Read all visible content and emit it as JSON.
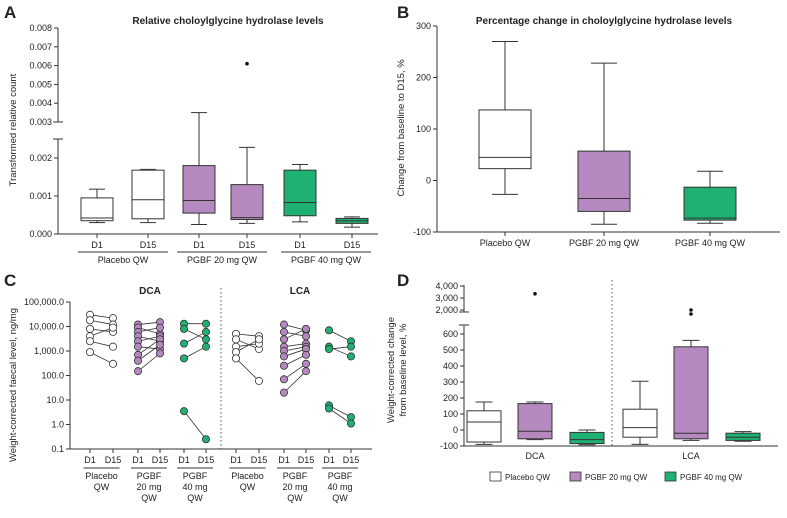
{
  "colors": {
    "placebo": "#ffffff",
    "pgbf20": "#b589c0",
    "pgbf40": "#1fb172",
    "stroke": "#333333"
  },
  "legend": [
    {
      "key": "placebo",
      "label": "Placebo QW"
    },
    {
      "key": "pgbf20",
      "label": "PGBF 20 mg QW"
    },
    {
      "key": "pgbf40",
      "label": "PGBF 40 mg QW"
    }
  ],
  "chart_data": [
    {
      "panel": "A",
      "type": "box",
      "title": "Relative choloylglycine hydrolase levels",
      "ylabel": "Transformed relative count",
      "y_ticks": [
        "0.000",
        "0.001",
        "0.002",
        "0.003",
        "0.004",
        "0.005",
        "0.006",
        "0.007",
        "0.008"
      ],
      "axis_break": {
        "lower": [
          0,
          0.0025
        ],
        "upper": [
          0.003,
          0.008
        ]
      },
      "x_ticks": [
        "D1",
        "D15",
        "D1",
        "D15",
        "D1",
        "D15"
      ],
      "groups": [
        "Placebo QW",
        "PGBF 20 mg QW",
        "PGBF 40 mg QW"
      ],
      "boxes": [
        {
          "group": "placebo",
          "day": "D1",
          "min": 0.0003,
          "q1": 0.00035,
          "median": 0.00042,
          "q3": 0.00095,
          "max": 0.00118
        },
        {
          "group": "placebo",
          "day": "D15",
          "min": 0.0003,
          "q1": 0.0004,
          "median": 0.0009,
          "q3": 0.00168,
          "max": 0.0017
        },
        {
          "group": "pgbf20",
          "day": "D1",
          "min": 0.00025,
          "q1": 0.00055,
          "median": 0.00088,
          "q3": 0.0018,
          "max": 0.0035
        },
        {
          "group": "pgbf20",
          "day": "D15",
          "min": 0.00028,
          "q1": 0.00038,
          "median": 0.00043,
          "q3": 0.0013,
          "max": 0.00228,
          "outliers": [
            0.0061
          ]
        },
        {
          "group": "pgbf40",
          "day": "D1",
          "min": 0.00032,
          "q1": 0.00048,
          "median": 0.00083,
          "q3": 0.00168,
          "max": 0.00183
        },
        {
          "group": "pgbf40",
          "day": "D15",
          "min": 0.00018,
          "q1": 0.00028,
          "median": 0.00035,
          "q3": 0.00041,
          "max": 0.00045
        }
      ]
    },
    {
      "panel": "B",
      "type": "box",
      "title": "Percentage change in choloylglycine hydrolase levels",
      "ylabel": "Change from baseline to D15, %",
      "ylim": [
        -100,
        300
      ],
      "y_ticks": [
        "-100",
        "0",
        "100",
        "200",
        "300"
      ],
      "categories": [
        "Placebo QW",
        "PGBF 20 mg QW",
        "PGBF 40 mg QW"
      ],
      "boxes": [
        {
          "group": "placebo",
          "min": -27,
          "q1": 23,
          "median": 45,
          "q3": 137,
          "max": 270
        },
        {
          "group": "pgbf20",
          "min": -85,
          "q1": -60,
          "median": -35,
          "q3": 57,
          "max": 228
        },
        {
          "group": "pgbf40",
          "min": -83,
          "q1": -77,
          "median": -73,
          "q3": -13,
          "max": 18
        }
      ]
    },
    {
      "panel": "C",
      "type": "paired-scatter",
      "ylabel": "Weight-corrected faecal level, ng/mg",
      "y_scale": "log",
      "y_ticks": [
        "0.1",
        "1.0",
        "10.0",
        "100.0",
        "1,000.0",
        "10,000.0",
        "100,000.0"
      ],
      "x_ticks": [
        "D1",
        "D15",
        "D1",
        "D15",
        "D1",
        "D15",
        "D1",
        "D15",
        "D1",
        "D15",
        "D1",
        "D15"
      ],
      "group_labels": [
        "Placebo\nQW",
        "PGBF\n20 mg\nQW",
        "PGBF\n40 mg\nQW",
        "Placebo\nQW",
        "PGBF\n20 mg\nQW",
        "PGBF\n40 mg\nQW"
      ],
      "subpanels": [
        {
          "title": "DCA",
          "groups": [
            {
              "group": "placebo",
              "pairs": [
                [
                  30000,
                  22000
                ],
                [
                  18000,
                  12000
                ],
                [
                  8000,
                  6000
                ],
                [
                  4000,
                  9000
                ],
                [
                  2500,
                  1500
                ],
                [
                  900,
                  300
                ]
              ]
            },
            {
              "group": "pgbf20",
              "pairs": [
                [
                  12000,
                  15000
                ],
                [
                  9000,
                  5000
                ],
                [
                  6000,
                  9000
                ],
                [
                  4000,
                  2500
                ],
                [
                  2500,
                  4000
                ],
                [
                  1500,
                  1200
                ],
                [
                  700,
                  3000
                ],
                [
                  400,
                  1800
                ],
                [
                  150,
                  800
                ]
              ]
            },
            {
              "group": "pgbf40",
              "pairs": [
                [
                  13000,
                  13000
                ],
                [
                  8000,
                  3000
                ],
                [
                  2000,
                  6000
                ],
                [
                  500,
                  1500
                ],
                [
                  3.5,
                  0.25
                ]
              ]
            }
          ]
        },
        {
          "title": "LCA",
          "groups": [
            {
              "group": "placebo",
              "pairs": [
                [
                  5000,
                  4000
                ],
                [
                  3000,
                  1200
                ],
                [
                  1500,
                  2000
                ],
                [
                  900,
                  3000
                ],
                [
                  500,
                  60
                ]
              ]
            },
            {
              "group": "pgbf20",
              "pairs": [
                [
                  12000,
                  7000
                ],
                [
                  6000,
                  4000
                ],
                [
                  3000,
                  8000
                ],
                [
                  1500,
                  2000
                ],
                [
                  1000,
                  1500
                ],
                [
                  600,
                  1200
                ],
                [
                  250,
                  700
                ],
                [
                  70,
                  300
                ],
                [
                  20,
                  150
                ]
              ]
            },
            {
              "group": "pgbf40",
              "pairs": [
                [
                  7000,
                  2500
                ],
                [
                  1500,
                  600
                ],
                [
                  1200,
                  1500
                ],
                [
                  6,
                  2
                ],
                [
                  4.5,
                  1.1
                ]
              ]
            }
          ]
        }
      ]
    },
    {
      "panel": "D",
      "type": "box",
      "ylabel": "Weight-corrected change\nfrom baseline level, %",
      "y_ticks_lower": [
        "-100",
        "0",
        "100",
        "200",
        "300",
        "400",
        "500",
        "600"
      ],
      "y_ticks_upper": [
        "2,000",
        "3,000",
        "4,000"
      ],
      "axis_break": {
        "lower": [
          -100,
          650
        ],
        "upper": [
          1500,
          4000
        ]
      },
      "categories": [
        "DCA",
        "LCA"
      ],
      "boxes": [
        {
          "cat": "DCA",
          "group": "placebo",
          "min": -90,
          "q1": -75,
          "median": 50,
          "q3": 120,
          "max": 175
        },
        {
          "cat": "DCA",
          "group": "pgbf20",
          "min": -60,
          "q1": -55,
          "median": -8,
          "q3": 165,
          "max": 175,
          "outliers": [
            3350
          ]
        },
        {
          "cat": "DCA",
          "group": "pgbf40",
          "min": -92,
          "q1": -85,
          "median": -60,
          "q3": -15,
          "max": 0
        },
        {
          "cat": "LCA",
          "group": "placebo",
          "min": -90,
          "q1": -45,
          "median": 15,
          "q3": 130,
          "max": 305
        },
        {
          "cat": "LCA",
          "group": "pgbf20",
          "min": -65,
          "q1": -55,
          "median": -20,
          "q3": 520,
          "max": 560,
          "outliers": [
            1750,
            2000
          ]
        },
        {
          "cat": "LCA",
          "group": "pgbf40",
          "min": -70,
          "q1": -65,
          "median": -45,
          "q3": -20,
          "max": -10
        }
      ]
    }
  ]
}
